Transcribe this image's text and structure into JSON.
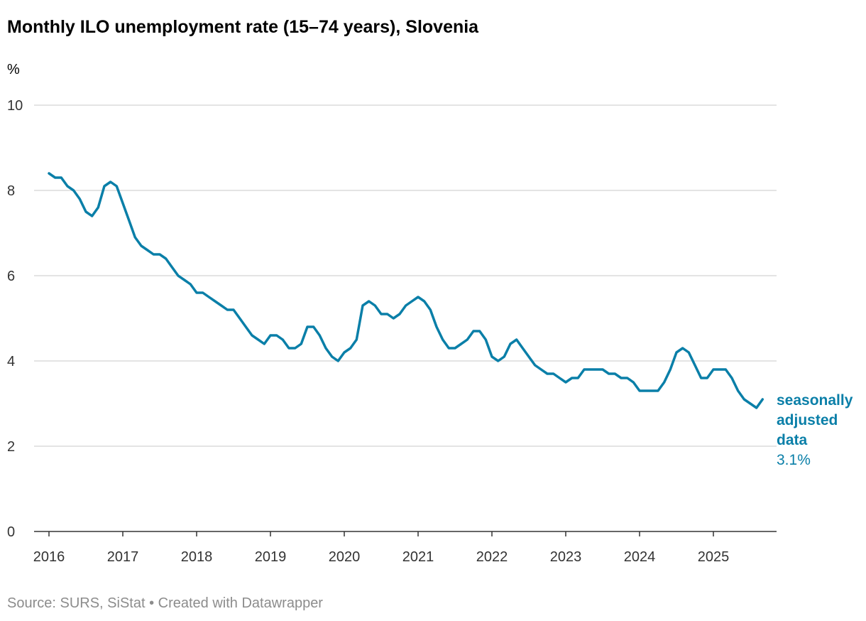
{
  "title": "Monthly ILO unemployment rate (15–74 years), Slovenia",
  "footer": "Source: SURS, SiStat • Created with Datawrapper",
  "chart_data": {
    "type": "line",
    "ylabel": "%",
    "xlabel": "",
    "ylim": [
      0,
      10
    ],
    "yticks": [
      0,
      2,
      4,
      6,
      8,
      10
    ],
    "xticks": [
      "2016",
      "2017",
      "2018",
      "2019",
      "2020",
      "2021",
      "2022",
      "2023",
      "2024",
      "2025"
    ],
    "x_start": "2016-01",
    "x_end": "2025-09",
    "grid": true,
    "colors": {
      "series": "#0a7fa8"
    },
    "series": [
      {
        "name": "seasonally adjusted data",
        "end_label": "3.1%",
        "x": [
          "2016-01",
          "2016-02",
          "2016-03",
          "2016-04",
          "2016-05",
          "2016-06",
          "2016-07",
          "2016-08",
          "2016-09",
          "2016-10",
          "2016-11",
          "2016-12",
          "2017-01",
          "2017-02",
          "2017-03",
          "2017-04",
          "2017-05",
          "2017-06",
          "2017-07",
          "2017-08",
          "2017-09",
          "2017-10",
          "2017-11",
          "2017-12",
          "2018-01",
          "2018-02",
          "2018-03",
          "2018-04",
          "2018-05",
          "2018-06",
          "2018-07",
          "2018-08",
          "2018-09",
          "2018-10",
          "2018-11",
          "2018-12",
          "2019-01",
          "2019-02",
          "2019-03",
          "2019-04",
          "2019-05",
          "2019-06",
          "2019-07",
          "2019-08",
          "2019-09",
          "2019-10",
          "2019-11",
          "2019-12",
          "2020-01",
          "2020-02",
          "2020-03",
          "2020-04",
          "2020-05",
          "2020-06",
          "2020-07",
          "2020-08",
          "2020-09",
          "2020-10",
          "2020-11",
          "2020-12",
          "2021-01",
          "2021-02",
          "2021-03",
          "2021-04",
          "2021-05",
          "2021-06",
          "2021-07",
          "2021-08",
          "2021-09",
          "2021-10",
          "2021-11",
          "2021-12",
          "2022-01",
          "2022-02",
          "2022-03",
          "2022-04",
          "2022-05",
          "2022-06",
          "2022-07",
          "2022-08",
          "2022-09",
          "2022-10",
          "2022-11",
          "2022-12",
          "2023-01",
          "2023-02",
          "2023-03",
          "2023-04",
          "2023-05",
          "2023-06",
          "2023-07",
          "2023-08",
          "2023-09",
          "2023-10",
          "2023-11",
          "2023-12",
          "2024-01",
          "2024-02",
          "2024-03",
          "2024-04",
          "2024-05",
          "2024-06",
          "2024-07",
          "2024-08",
          "2024-09",
          "2024-10",
          "2024-11",
          "2024-12",
          "2025-01",
          "2025-02",
          "2025-03",
          "2025-04",
          "2025-05",
          "2025-06",
          "2025-07",
          "2025-08",
          "2025-09"
        ],
        "values": [
          8.4,
          8.3,
          8.3,
          8.1,
          8.0,
          7.8,
          7.5,
          7.4,
          7.6,
          8.1,
          8.2,
          8.1,
          7.7,
          7.3,
          6.9,
          6.7,
          6.6,
          6.5,
          6.5,
          6.4,
          6.2,
          6.0,
          5.9,
          5.8,
          5.6,
          5.6,
          5.5,
          5.4,
          5.3,
          5.2,
          5.2,
          5.0,
          4.8,
          4.6,
          4.5,
          4.4,
          4.6,
          4.6,
          4.5,
          4.3,
          4.3,
          4.4,
          4.8,
          4.8,
          4.6,
          4.3,
          4.1,
          4.0,
          4.2,
          4.3,
          4.5,
          5.3,
          5.4,
          5.3,
          5.1,
          5.1,
          5.0,
          5.1,
          5.3,
          5.4,
          5.5,
          5.4,
          5.2,
          4.8,
          4.5,
          4.3,
          4.3,
          4.4,
          4.5,
          4.7,
          4.7,
          4.5,
          4.1,
          4.0,
          4.1,
          4.4,
          4.5,
          4.3,
          4.1,
          3.9,
          3.8,
          3.7,
          3.7,
          3.6,
          3.5,
          3.6,
          3.6,
          3.8,
          3.8,
          3.8,
          3.8,
          3.7,
          3.7,
          3.6,
          3.6,
          3.5,
          3.3,
          3.3,
          3.3,
          3.3,
          3.5,
          3.8,
          4.2,
          4.3,
          4.2,
          3.9,
          3.6,
          3.6,
          3.8,
          3.8,
          3.8,
          3.6,
          3.3,
          3.1,
          3.0,
          2.9,
          3.1
        ]
      }
    ]
  }
}
